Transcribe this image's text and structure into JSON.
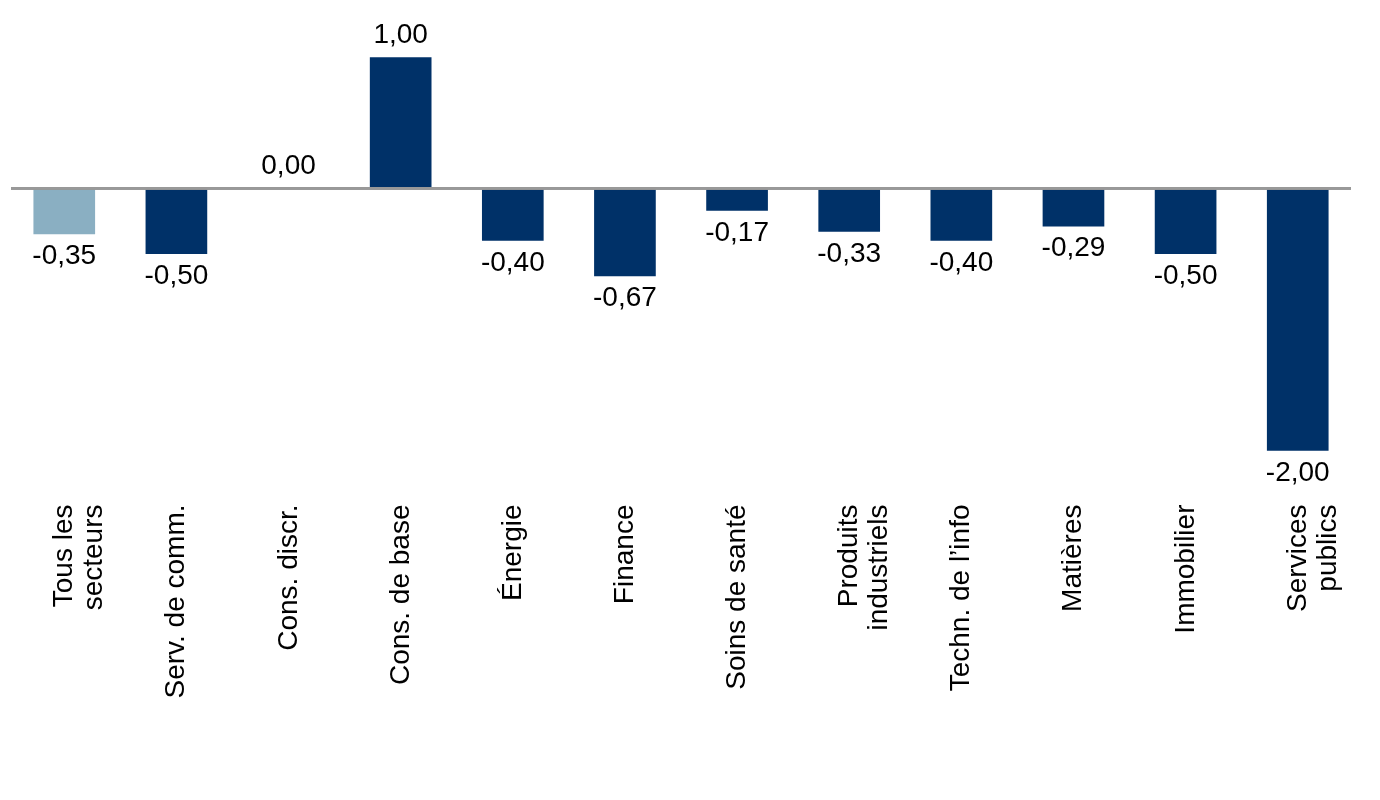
{
  "chart_data": {
    "type": "bar",
    "categories": [
      "Tous les\nsecteurs",
      "Serv. de comm.",
      "Cons. discr.",
      "Cons. de base",
      "Énergie",
      "Finance",
      "Soins de santé",
      "Produits\nindustriels",
      "Techn. de l’info",
      "Matières",
      "Immobilier",
      "Services\npublics"
    ],
    "values": [
      -0.35,
      -0.5,
      0.0,
      1.0,
      -0.4,
      -0.67,
      -0.17,
      -0.33,
      -0.4,
      -0.29,
      -0.5,
      -2.0
    ],
    "colors": [
      "#8aafc2",
      "#003168",
      "#003168",
      "#003168",
      "#003168",
      "#003168",
      "#003168",
      "#003168",
      "#003168",
      "#003168",
      "#003168",
      "#003168"
    ],
    "value_labels": [
      "-0,35",
      "-0,50",
      "0,00",
      "1,00",
      "-0,40",
      "-0,67",
      "-0,17",
      "-0,33",
      "-0,40",
      "-0,29",
      "-0,50",
      "-2,00"
    ],
    "grid": false
  }
}
